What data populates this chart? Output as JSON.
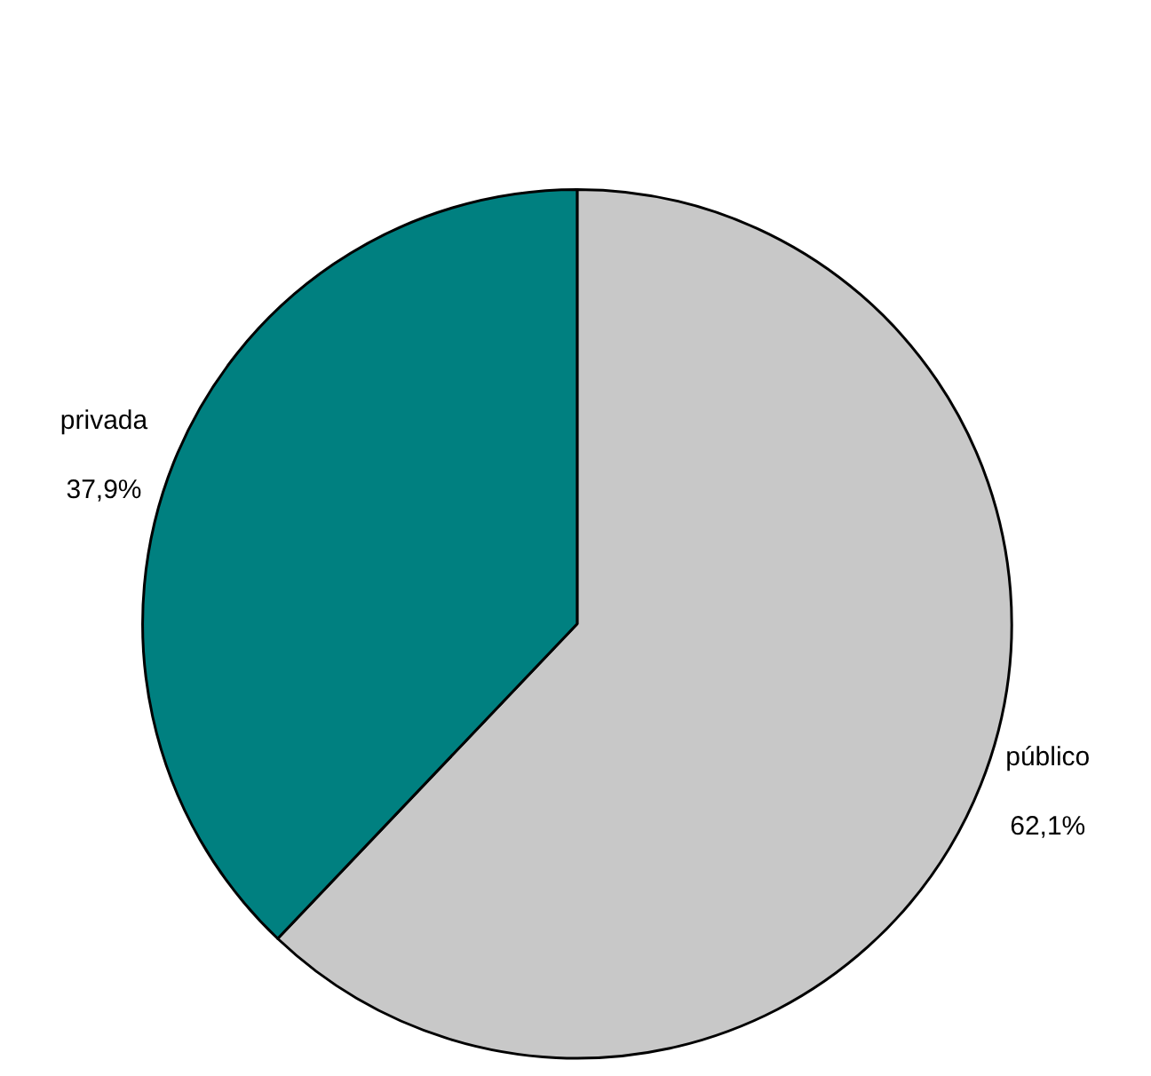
{
  "chart_data": {
    "type": "pie",
    "categories": [
      "público",
      "privada"
    ],
    "values": [
      62.1,
      37.9
    ],
    "value_labels": [
      "62,1%",
      "37,9%"
    ],
    "colors": [
      "#c8c8c8",
      "#008080"
    ],
    "legend": false
  }
}
